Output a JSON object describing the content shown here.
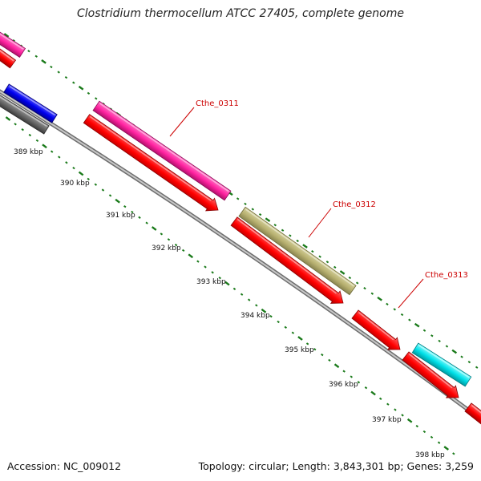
{
  "title": "Clostridium thermocellum ATCC 27405, complete genome",
  "accession_text": "Accession: NC_009012",
  "summary_text": "Topology: circular; Length: 3,843,301 bp; Genes: 3,259",
  "colors": {
    "backbone": "#808080",
    "tick_green": "#1a7a1a",
    "label_red": "#cc0000",
    "forward_default": "#ff2299",
    "reverse_default": "#ff0000"
  },
  "kbp_labels": [
    "389 kbp",
    "390 kbp",
    "391 kbp",
    "392 kbp",
    "393 kbp",
    "394 kbp",
    "395 kbp",
    "396 kbp",
    "397 kbp",
    "398 kbp"
  ],
  "gene_labels": [
    {
      "name": "Cthe_0311"
    },
    {
      "name": "Cthe_0312"
    },
    {
      "name": "Cthe_0313"
    }
  ],
  "features": [
    {
      "track": "forward",
      "color": "pink"
    },
    {
      "track": "forward",
      "color": "blue"
    },
    {
      "track": "forward",
      "color": "pink"
    },
    {
      "track": "forward",
      "color": "olive"
    },
    {
      "track": "forward",
      "color": "cyan"
    },
    {
      "track": "reverse",
      "color": "red"
    },
    {
      "track": "reverse",
      "color": "gray"
    },
    {
      "track": "reverse",
      "color": "red"
    },
    {
      "track": "reverse",
      "color": "red"
    },
    {
      "track": "reverse",
      "color": "red"
    },
    {
      "track": "reverse",
      "color": "red"
    },
    {
      "track": "reverse",
      "color": "red"
    }
  ]
}
